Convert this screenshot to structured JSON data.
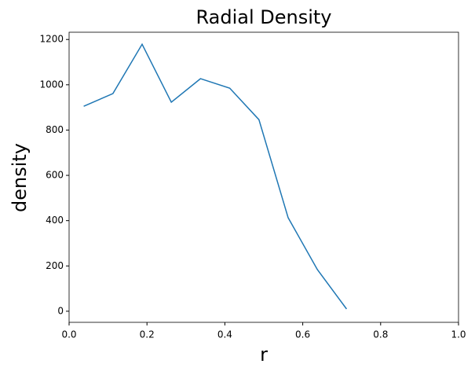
{
  "chart_data": {
    "type": "line",
    "title": "Radial Density",
    "x_label": "r",
    "y_label": "density",
    "x": [
      0.0375,
      0.1125,
      0.1875,
      0.2625,
      0.3375,
      0.4125,
      0.4875,
      0.5625,
      0.6375,
      0.7125
    ],
    "series": [
      {
        "color": "#1f77b4",
        "values": [
          905,
          961,
          1179,
          923,
          1027,
          985,
          846,
          413,
          184,
          10
        ]
      }
    ],
    "xlim": [
      0,
      1
    ],
    "xticks": [
      {
        "value": 0,
        "label": "0.0"
      },
      {
        "value": 0.2,
        "label": "0.2"
      },
      {
        "value": 0.4,
        "label": "0.4"
      },
      {
        "value": 0.6,
        "label": "0.6"
      },
      {
        "value": 0.8,
        "label": "0.8"
      },
      {
        "value": 1,
        "label": "1.0"
      }
    ],
    "ylim": [
      -49,
      1232
    ],
    "yticks": [
      0,
      200,
      400,
      600,
      800,
      1000,
      1200
    ],
    "grid": false
  }
}
